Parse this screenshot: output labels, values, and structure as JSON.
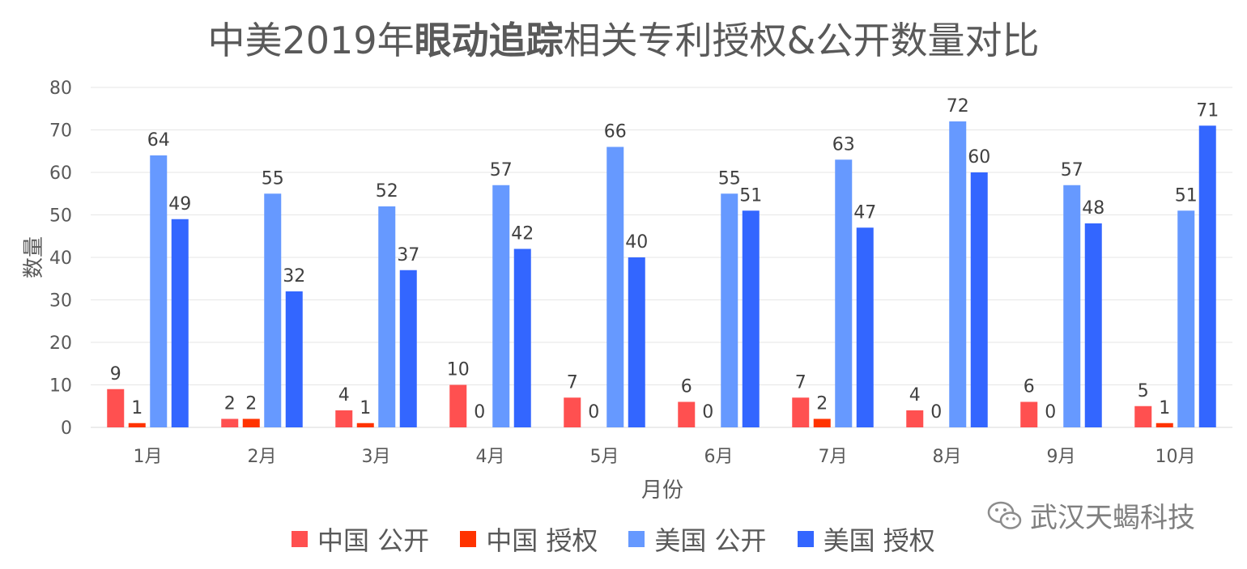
{
  "chart_data": {
    "type": "bar",
    "title": {
      "prefix": "中美2019年",
      "bold": "眼动追踪",
      "suffix": "相关专利授权&公开数量对比"
    },
    "xlabel": "月份",
    "ylabel": "数量",
    "ylim": [
      0,
      80
    ],
    "yticks": [
      0,
      10,
      20,
      30,
      40,
      50,
      60,
      70,
      80
    ],
    "grid": true,
    "legend_position": "bottom",
    "categories": [
      "1月",
      "2月",
      "3月",
      "4月",
      "5月",
      "6月",
      "7月",
      "8月",
      "9月",
      "10月"
    ],
    "series": [
      {
        "name": "中国 公开",
        "color": "#ff5050",
        "values": [
          9,
          2,
          4,
          10,
          7,
          6,
          7,
          4,
          6,
          5
        ]
      },
      {
        "name": "中国 授权",
        "color": "#ff3300",
        "values": [
          1,
          2,
          1,
          0,
          0,
          0,
          2,
          0,
          0,
          1
        ]
      },
      {
        "name": "美国 公开",
        "color": "#6699ff",
        "values": [
          64,
          55,
          52,
          57,
          66,
          55,
          63,
          72,
          57,
          51
        ]
      },
      {
        "name": "美国 授权",
        "color": "#3366ff",
        "values": [
          49,
          32,
          37,
          42,
          40,
          51,
          47,
          60,
          48,
          71
        ]
      }
    ]
  },
  "watermark": {
    "text": "武汉天蝎科技",
    "icon": "wechat-icon"
  }
}
